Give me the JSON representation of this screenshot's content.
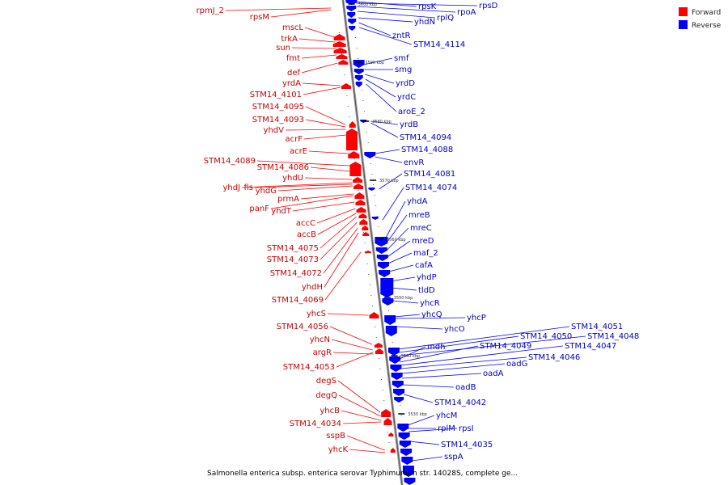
{
  "colors": {
    "forward": "#ff0000",
    "reverse": "#0000ff",
    "axis": "#888888",
    "text_forward": "#cc0000",
    "text_reverse": "#0000cc"
  },
  "legend": [
    {
      "label": "Forward",
      "color": "#ff0000"
    },
    {
      "label": "Reverse",
      "color": "#0000ff"
    }
  ],
  "caption": "Salmonella enterica subsp. enterica serovar Typhimurium str. 14028S, complete ge...",
  "kbp_markers": [
    "3600 kbp",
    "3590 kbp",
    "3580 kbp",
    "3570 kbp",
    "3560 kbp",
    "3550 kbp",
    "3540 kbp",
    "3530 kbp"
  ],
  "forward_genes": [
    "rpmJ_2",
    "rpsM",
    "mscL",
    "trkA",
    "sun",
    "fmt",
    "def",
    "yrdA",
    "STM14_4101",
    "STM14_4095",
    "STM14_4093",
    "yhdV",
    "acrF",
    "acrE",
    "STM14_4089",
    "STM14_4086",
    "yhdU",
    "yhdJ",
    "fis",
    "yhdG",
    "prmA",
    "panF",
    "yhdT",
    "accC",
    "accB",
    "STM14_4075",
    "STM14_4073",
    "STM14_4072",
    "yhdH",
    "STM14_4069",
    "yhcS",
    "STM14_4056",
    "yhcN",
    "argR",
    "STM14_4053",
    "degS",
    "degQ",
    "yhcB",
    "STM14_4034",
    "sspB",
    "yhcK"
  ],
  "reverse_genes": [
    "rpsK",
    "rpsD",
    "rpoA",
    "rplQ",
    "yhdN",
    "zntR",
    "STM14_4114",
    "smf",
    "smg",
    "yrdD",
    "yrdC",
    "aroE_2",
    "yrdB",
    "STM14_4094",
    "STM14_4088",
    "envR",
    "STM14_4081",
    "STM14_4074",
    "yhdA",
    "mreB",
    "mreC",
    "mreD",
    "maf_2",
    "cafA",
    "yhdP",
    "tldD",
    "yhcR",
    "yhcQ",
    "yhcP",
    "yhcO",
    "STM14_4051",
    "STM14_4050",
    "STM14_4048",
    "mdh",
    "STM14_4049",
    "STM14_4047",
    "STM14_4046",
    "oadG",
    "oadA",
    "oadB",
    "STM14_4042",
    "yhcM",
    "rplM",
    "rpsI",
    "STM14_4035",
    "sspA"
  ]
}
